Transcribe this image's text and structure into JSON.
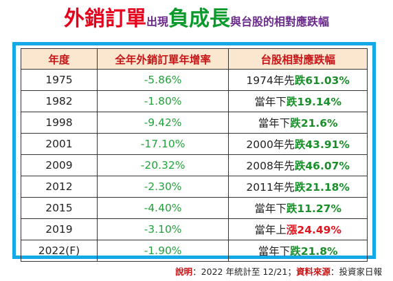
{
  "title": {
    "part1": "外銷訂單",
    "part2": "出現",
    "part3": "負成長",
    "part4": "與台股的相對應跌幅"
  },
  "table": {
    "headers": [
      "年度",
      "全年外銷訂單年增率",
      "台股相對應跌幅"
    ],
    "rows": [
      {
        "year": "1975",
        "rate": "-5.86%",
        "pre": "1974年先",
        "verb": "跌",
        "verb_type": "fall",
        "pct": "61.03%"
      },
      {
        "year": "1982",
        "rate": "-1.80%",
        "pre": "當年下",
        "verb": "跌",
        "verb_type": "fall",
        "pct": "19.14%"
      },
      {
        "year": "1998",
        "rate": "-9.42%",
        "pre": "當年下",
        "verb": "跌",
        "verb_type": "fall",
        "pct": "21.6%"
      },
      {
        "year": "2001",
        "rate": "-17.10%",
        "pre": "2000年先",
        "verb": "跌",
        "verb_type": "fall",
        "pct": "43.91%"
      },
      {
        "year": "2009",
        "rate": "-20.32%",
        "pre": "2008年先",
        "verb": "跌",
        "verb_type": "fall",
        "pct": "46.07%"
      },
      {
        "year": "2012",
        "rate": "-2.30%",
        "pre": "2011年先",
        "verb": "跌",
        "verb_type": "fall",
        "pct": "21.18%"
      },
      {
        "year": "2015",
        "rate": "-4.40%",
        "pre": "當年下",
        "verb": "跌",
        "verb_type": "fall",
        "pct": "11.27%"
      },
      {
        "year": "2019",
        "rate": "-3.10%",
        "pre": "當年上",
        "verb": "漲",
        "verb_type": "rise",
        "pct": "24.49%"
      },
      {
        "year": "2022(F)",
        "rate": "-1.90%",
        "pre": "當年下",
        "verb": "跌",
        "verb_type": "fall",
        "pct": "21.8%"
      }
    ]
  },
  "footer": {
    "note_label": "說明",
    "note_text": "：2022 年統計至 12/21；",
    "source_label": "資料來源",
    "source_text": "：投資家日報"
  }
}
